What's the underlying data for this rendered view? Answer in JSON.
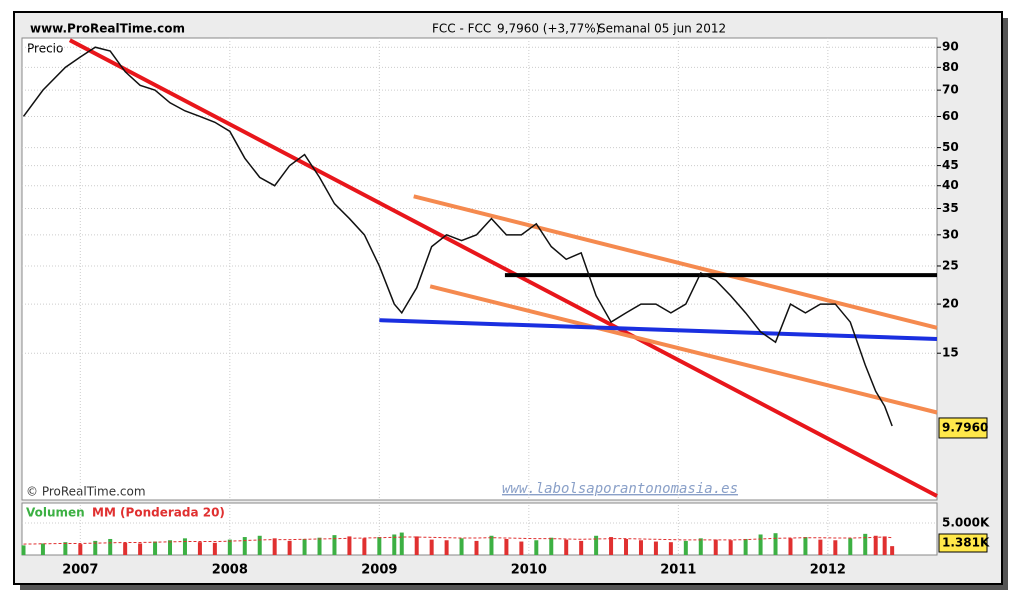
{
  "chart_data": {
    "type": "line",
    "site": "www.ProRealTime.com",
    "title": "FCC - FCC",
    "quote": "9,7960 (+3,77%)",
    "period": "Semanal  05 jun 2012",
    "panel_label": "Precio",
    "copyright": "© ProRealTime.com",
    "watermark": "www.labolsaporantonomasia.es",
    "log_scale": true,
    "grid": true,
    "color": "#111111",
    "xlim": [
      2006.61,
      2012.73
    ],
    "xticks": [
      2007,
      2008,
      2009,
      2010,
      2011,
      2012
    ],
    "ylim": [
      6.35,
      95
    ],
    "yticks": [
      90,
      80,
      70,
      60,
      50,
      45,
      40,
      35,
      30,
      25,
      20,
      15
    ],
    "x": [
      2006.62,
      2006.75,
      2006.9,
      2007.0,
      2007.1,
      2007.2,
      2007.3,
      2007.4,
      2007.5,
      2007.6,
      2007.7,
      2007.8,
      2007.9,
      2008.0,
      2008.1,
      2008.2,
      2008.3,
      2008.4,
      2008.5,
      2008.6,
      2008.7,
      2008.8,
      2008.9,
      2009.0,
      2009.1,
      2009.15,
      2009.25,
      2009.35,
      2009.45,
      2009.55,
      2009.65,
      2009.75,
      2009.85,
      2009.95,
      2010.05,
      2010.15,
      2010.25,
      2010.35,
      2010.45,
      2010.55,
      2010.65,
      2010.75,
      2010.85,
      2010.95,
      2011.05,
      2011.15,
      2011.25,
      2011.35,
      2011.45,
      2011.55,
      2011.65,
      2011.75,
      2011.85,
      2011.95,
      2012.05,
      2012.15,
      2012.25,
      2012.32,
      2012.38,
      2012.43
    ],
    "values": [
      60,
      70,
      80,
      85,
      90,
      88,
      78,
      72,
      70,
      65,
      62,
      60,
      58,
      55,
      47,
      42,
      40,
      45,
      48,
      42,
      36,
      33,
      30,
      25,
      20,
      19,
      22,
      28,
      30,
      29,
      30,
      33,
      30,
      30,
      32,
      28,
      26,
      27,
      21,
      18,
      19,
      20,
      20,
      19,
      20,
      24,
      23,
      21,
      19,
      17,
      16,
      20,
      19,
      20,
      20,
      18,
      14,
      12,
      11,
      9.796
    ],
    "last_value_label": "9.7960",
    "trendlines": [
      {
        "color": "#e8161b",
        "points": [
          [
            2006.93,
            93.8
          ],
          [
            2012.73,
            6.5
          ]
        ]
      },
      {
        "color": "#f58a4f",
        "points": [
          [
            2009.23,
            37.6
          ],
          [
            2012.73,
            17.4
          ]
        ]
      },
      {
        "color": "#f58a4f",
        "points": [
          [
            2009.34,
            22.2
          ],
          [
            2012.73,
            10.6
          ]
        ]
      },
      {
        "color": "#1a2fe0",
        "points": [
          [
            2009.0,
            18.2
          ],
          [
            2012.73,
            16.3
          ]
        ]
      },
      {
        "color": "#000000",
        "points": [
          [
            2009.84,
            23.7
          ],
          [
            2012.73,
            23.7
          ]
        ]
      }
    ],
    "volume": {
      "label": "Volumen",
      "ma_label": "MM (Ponderada 20)",
      "color": "#3cb043",
      "ma_color": "#e03030",
      "ylim": [
        0,
        7800
      ],
      "yticks": [
        {
          "value": 5000,
          "label": "5.000K"
        }
      ],
      "values": [
        1500,
        1800,
        2000,
        1700,
        2200,
        2500,
        1900,
        1800,
        2100,
        2300,
        2600,
        2000,
        1900,
        2400,
        2800,
        3000,
        2600,
        2200,
        2500,
        2700,
        3100,
        2900,
        2600,
        2800,
        3200,
        3500,
        2900,
        2400,
        2300,
        2600,
        2200,
        3000,
        2500,
        2100,
        2300,
        2700,
        2400,
        2200,
        3000,
        2800,
        2500,
        2300,
        2100,
        2000,
        2200,
        2600,
        2400,
        2300,
        2500,
        3200,
        3400,
        2600,
        2800,
        2400,
        2300,
        2600,
        3300,
        3000,
        2900,
        1381
      ],
      "ma_values": [
        1700,
        1750,
        1800,
        1800,
        1850,
        1900,
        1950,
        1950,
        2000,
        2050,
        2100,
        2100,
        2100,
        2150,
        2250,
        2350,
        2400,
        2400,
        2450,
        2500,
        2550,
        2600,
        2650,
        2700,
        2750,
        2800,
        2800,
        2750,
        2700,
        2650,
        2650,
        2700,
        2650,
        2600,
        2550,
        2550,
        2500,
        2450,
        2500,
        2550,
        2550,
        2500,
        2450,
        2400,
        2350,
        2350,
        2350,
        2350,
        2400,
        2500,
        2600,
        2650,
        2700,
        2700,
        2650,
        2650,
        2700,
        2750,
        2800,
        2700
      ],
      "last_value_label": "1.381K"
    }
  }
}
